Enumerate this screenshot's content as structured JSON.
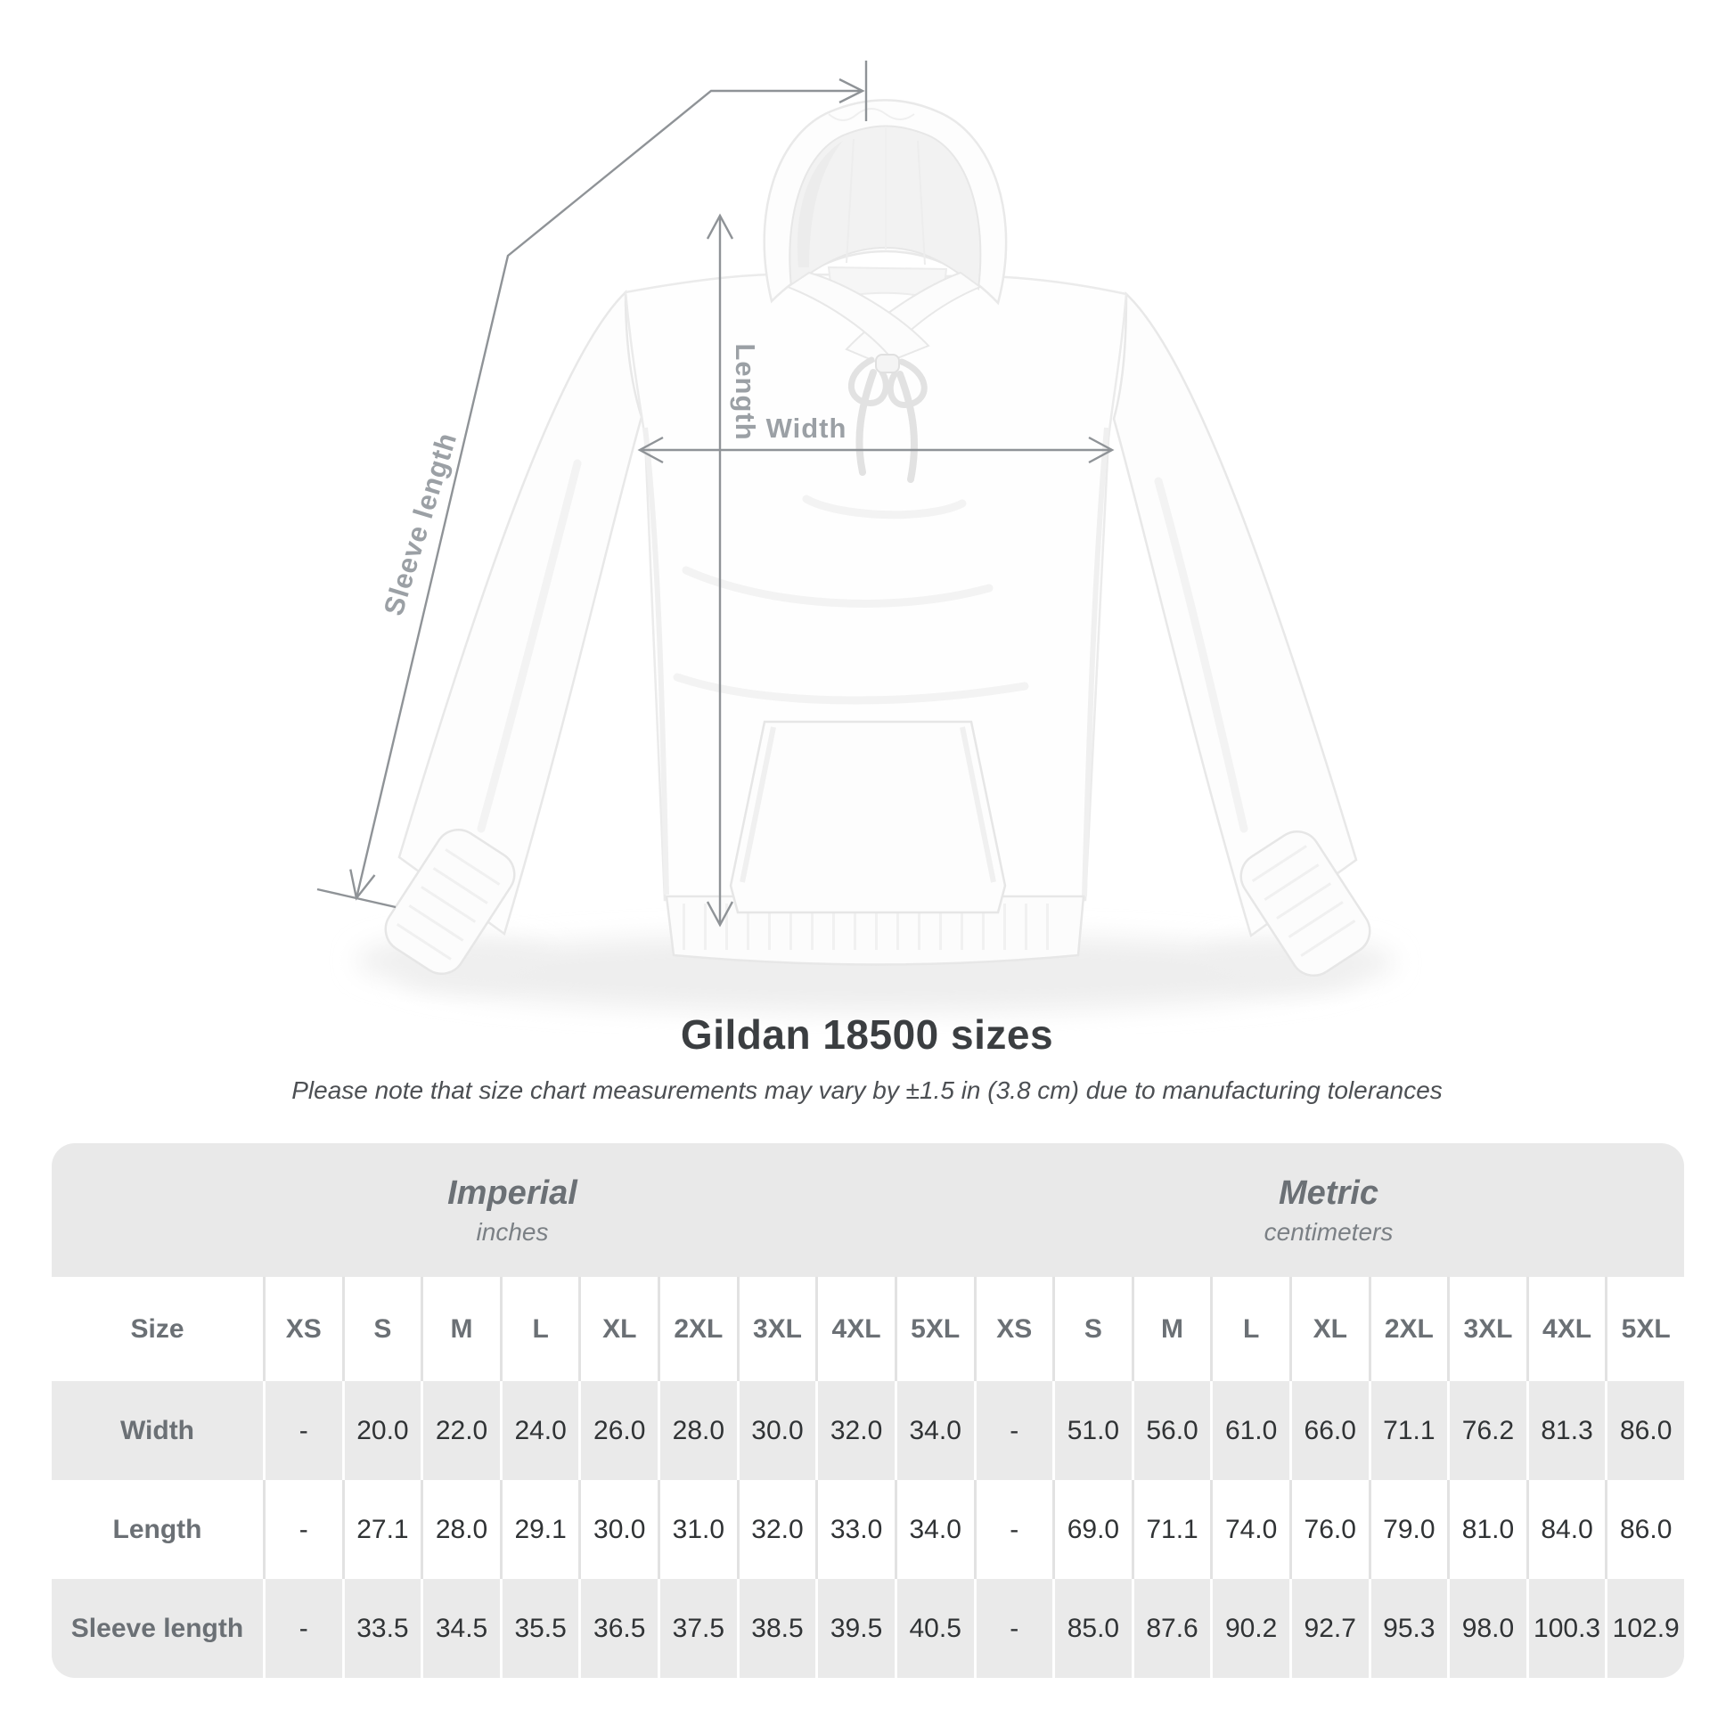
{
  "diagram": {
    "width_label": "Width",
    "length_label": "Length",
    "sleeve_label": "Sleeve length"
  },
  "title": "Gildan 18500 sizes",
  "subtitle": "Please note that size chart measurements may vary by ±1.5 in (3.8 cm) due to manufacturing tolerances",
  "table": {
    "unit_groups": [
      {
        "name": "Imperial",
        "unit": "inches"
      },
      {
        "name": "Metric",
        "unit": "centimeters"
      }
    ],
    "size_header": "Size",
    "sizes": [
      "XS",
      "S",
      "M",
      "L",
      "XL",
      "2XL",
      "3XL",
      "4XL",
      "5XL"
    ],
    "rows": [
      {
        "label": "Width",
        "imperial": [
          "-",
          "20.0",
          "22.0",
          "24.0",
          "26.0",
          "28.0",
          "30.0",
          "32.0",
          "34.0"
        ],
        "metric": [
          "-",
          "51.0",
          "56.0",
          "61.0",
          "66.0",
          "71.1",
          "76.2",
          "81.3",
          "86.0"
        ]
      },
      {
        "label": "Length",
        "imperial": [
          "-",
          "27.1",
          "28.0",
          "29.1",
          "30.0",
          "31.0",
          "32.0",
          "33.0",
          "34.0"
        ],
        "metric": [
          "-",
          "69.0",
          "71.1",
          "74.0",
          "76.0",
          "79.0",
          "81.0",
          "84.0",
          "86.0"
        ]
      },
      {
        "label": "Sleeve length",
        "imperial": [
          "-",
          "33.5",
          "34.5",
          "35.5",
          "36.5",
          "37.5",
          "38.5",
          "39.5",
          "40.5"
        ],
        "metric": [
          "-",
          "85.0",
          "87.6",
          "90.2",
          "92.7",
          "95.3",
          "98.0",
          "100.3",
          "102.9"
        ]
      }
    ]
  },
  "colors": {
    "band_gray": "#e9e9e9",
    "row_gray": "#eaeaea",
    "header_text": "#6b7075",
    "value_text": "#303335",
    "title_text": "#3b3e41",
    "subtitle_text": "#4c4f53",
    "dim_label": "#9ba0a5",
    "arrow": "#8f9397"
  }
}
